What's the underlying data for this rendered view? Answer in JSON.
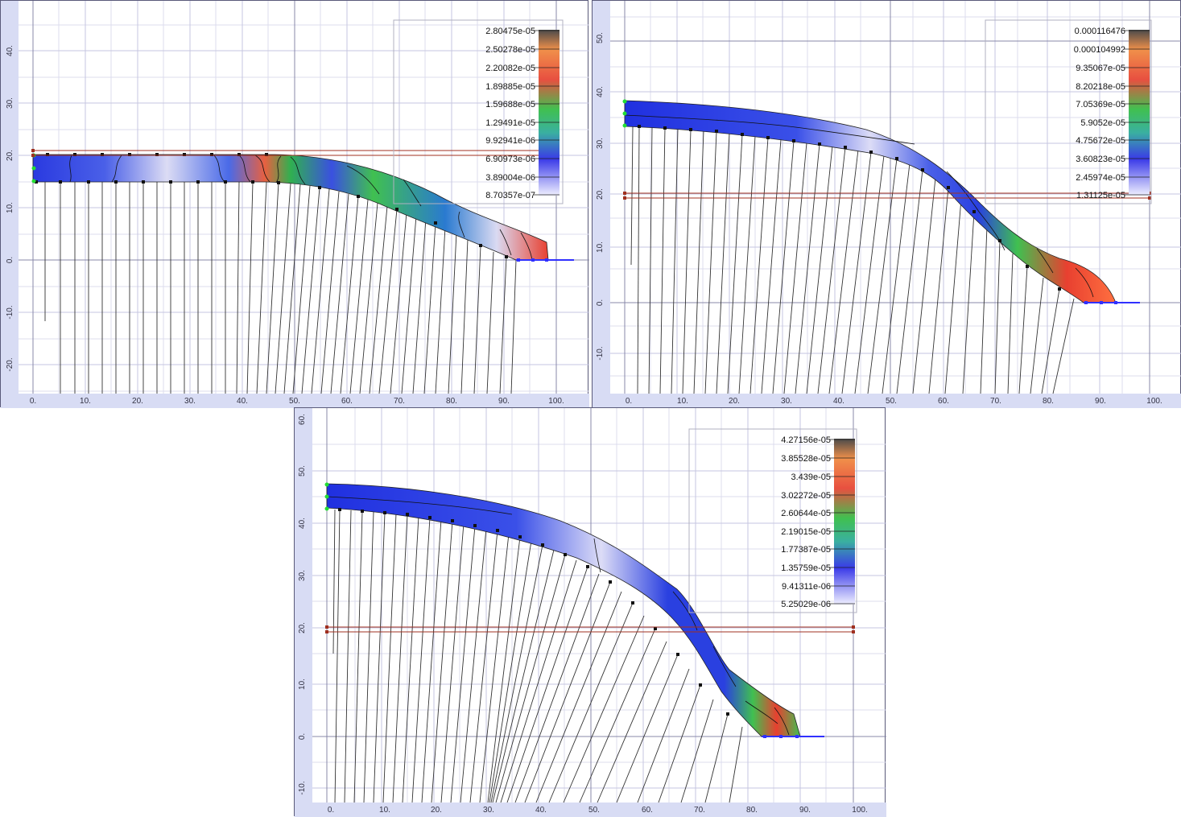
{
  "panels": [
    {
      "id": "p1",
      "x_ticks": [
        "0.",
        "10.",
        "20.",
        "30.",
        "40.",
        "50.",
        "60.",
        "70.",
        "80.",
        "90.",
        "100."
      ],
      "y_ticks": [
        "40.",
        "30.",
        "20.",
        "10.",
        "0.",
        "-10.",
        "-20."
      ],
      "legend": [
        "2.80475e-05",
        "2.50278e-05",
        "2.20082e-05",
        "1.89885e-05",
        "1.59688e-05",
        "1.29491e-05",
        "9.92941e-06",
        "6.90973e-06",
        "3.89004e-06",
        "8.70357e-07"
      ]
    },
    {
      "id": "p2",
      "x_ticks": [
        "0.",
        "10.",
        "20.",
        "30.",
        "40.",
        "50.",
        "60.",
        "70.",
        "80.",
        "90.",
        "100."
      ],
      "y_ticks": [
        "50.",
        "40.",
        "30.",
        "20.",
        "10.",
        "0.",
        "-10."
      ],
      "legend": [
        "0.000116476",
        "0.000104992",
        "9.35067e-05",
        "8.20218e-05",
        "7.05369e-05",
        "5.9052e-05",
        "4.75672e-05",
        "3.60823e-05",
        "2.45974e-05",
        "1.31125e-05"
      ]
    },
    {
      "id": "p3",
      "x_ticks": [
        "0.",
        "10.",
        "20.",
        "30.",
        "40.",
        "50.",
        "60.",
        "70.",
        "80.",
        "90.",
        "100."
      ],
      "y_ticks": [
        "60.",
        "50.",
        "40.",
        "30.",
        "20.",
        "10.",
        "0.",
        "-10."
      ],
      "legend": [
        "4.27156e-05",
        "3.85528e-05",
        "3.439e-05",
        "3.02272e-05",
        "2.60644e-05",
        "2.19015e-05",
        "1.77387e-05",
        "1.35759e-05",
        "9.41311e-06",
        "5.25029e-06"
      ]
    }
  ],
  "colors": {
    "axis_band": "#d8dcf4",
    "grid": "#c8c8e6",
    "grid_major": "#8888a8",
    "legend_high": "#4a4a4a",
    "legend_orange": "#f0904a",
    "legend_red": "#e85040",
    "legend_green": "#40c050",
    "legend_blue": "#3a3ae8",
    "legend_low": "#f0f0ff",
    "support_line": "#a03020"
  }
}
